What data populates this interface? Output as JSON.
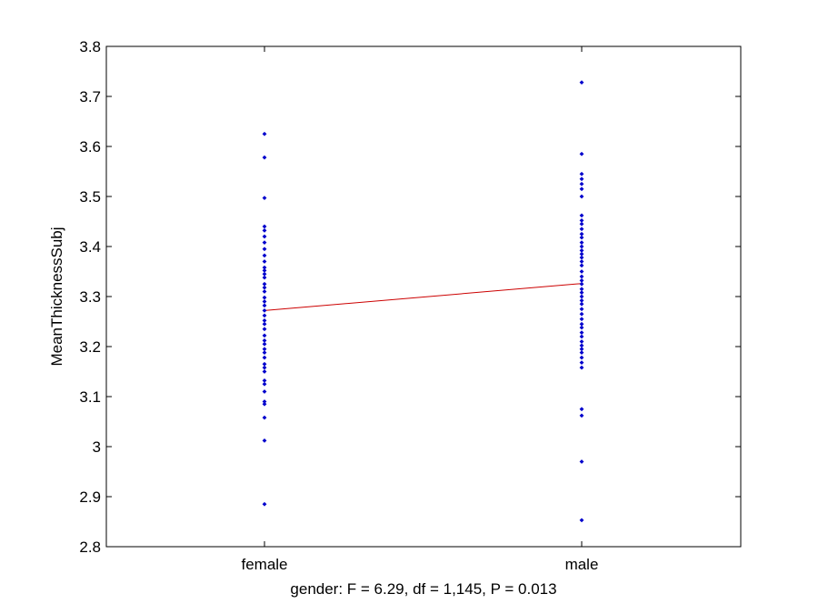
{
  "chart_data": {
    "type": "scatter",
    "title": "",
    "xlabel": "gender: F = 6.29, df = 1,145, P = 0.013",
    "ylabel": "MeanThicknessSubj",
    "categories": [
      "female",
      "male"
    ],
    "ylim": [
      2.8,
      3.8
    ],
    "yticks": [
      "2.8",
      "2.9",
      "3",
      "3.1",
      "3.2",
      "3.3",
      "3.4",
      "3.5",
      "3.6",
      "3.7",
      "3.8"
    ],
    "grid": false,
    "legend": "none",
    "series": [
      {
        "category": "female",
        "values": [
          3.625,
          3.578,
          3.497,
          3.44,
          3.432,
          3.42,
          3.408,
          3.395,
          3.382,
          3.37,
          3.358,
          3.352,
          3.345,
          3.338,
          3.325,
          3.318,
          3.31,
          3.298,
          3.29,
          3.282,
          3.272,
          3.262,
          3.252,
          3.245,
          3.235,
          3.222,
          3.212,
          3.205,
          3.195,
          3.188,
          3.178,
          3.165,
          3.158,
          3.15,
          3.132,
          3.125,
          3.11,
          3.09,
          3.085,
          3.058,
          3.012,
          2.885
        ]
      },
      {
        "category": "male",
        "values": [
          3.728,
          3.585,
          3.545,
          3.535,
          3.525,
          3.515,
          3.5,
          3.462,
          3.452,
          3.445,
          3.435,
          3.425,
          3.418,
          3.408,
          3.4,
          3.392,
          3.385,
          3.378,
          3.37,
          3.362,
          3.35,
          3.34,
          3.332,
          3.325,
          3.315,
          3.308,
          3.3,
          3.292,
          3.285,
          3.275,
          3.265,
          3.255,
          3.245,
          3.238,
          3.228,
          3.22,
          3.21,
          3.202,
          3.195,
          3.188,
          3.178,
          3.168,
          3.158,
          3.075,
          3.062,
          2.97,
          2.853
        ]
      }
    ],
    "fit_line": {
      "female": 3.272,
      "male": 3.326
    },
    "colors": {
      "points": "#0000cc",
      "fit_line": "#cc0000",
      "axes": "#000000"
    }
  }
}
